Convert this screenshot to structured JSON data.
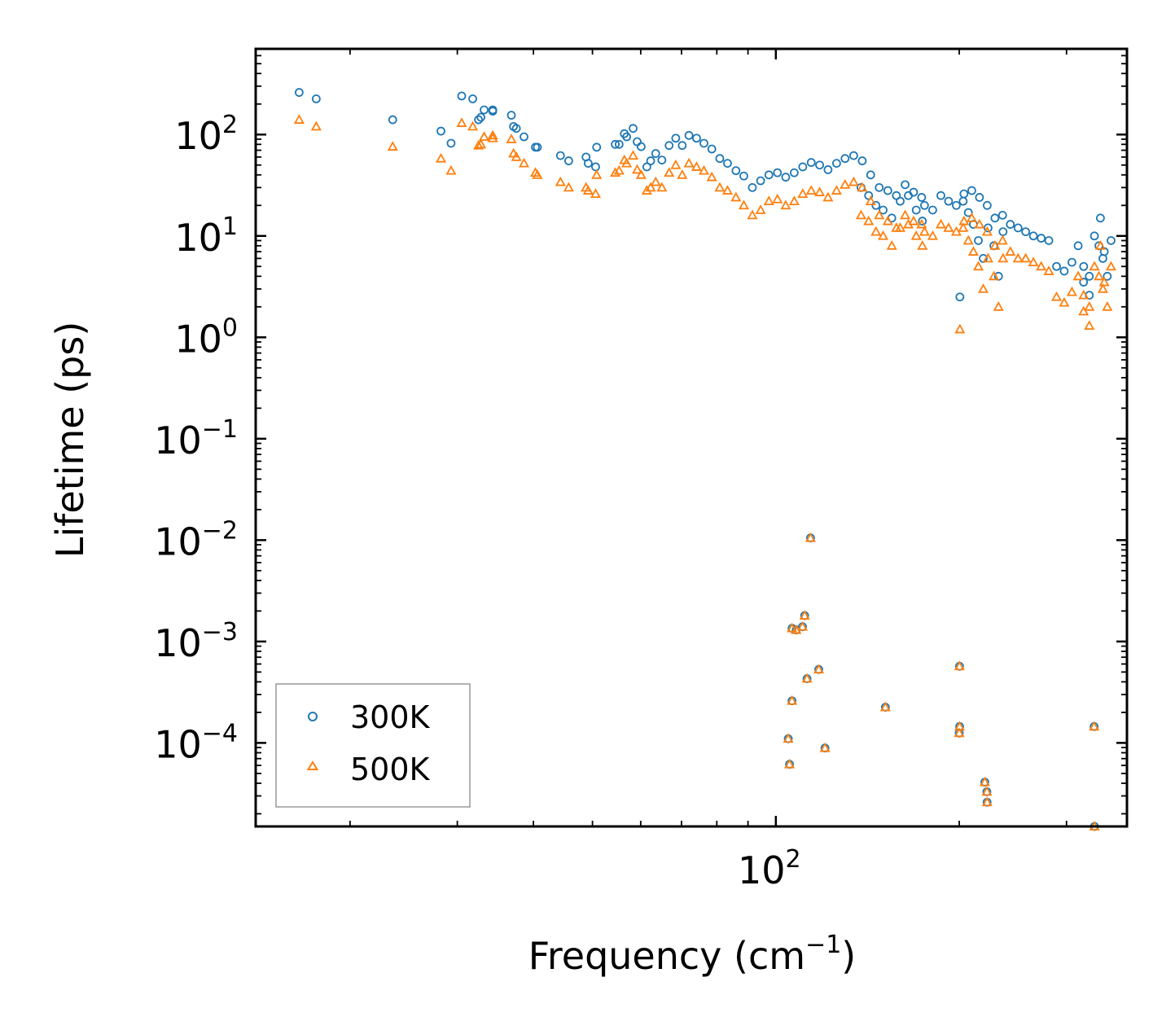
{
  "chart_data": {
    "type": "scatter",
    "title": "",
    "xlabel": "Frequency (cm",
    "xlabel_exp": "−1",
    "xlabel_suffix": ")",
    "ylabel": "Lifetime (ps)",
    "xscale": "log",
    "yscale": "log",
    "xlim": [
      14,
      377
    ],
    "ylim": [
      1.5e-05,
      700
    ],
    "x_ticks": [
      {
        "value": 100,
        "base": "10",
        "exp": "2"
      }
    ],
    "y_ticks": [
      {
        "value": 100,
        "base": "10",
        "exp": "2"
      },
      {
        "value": 10,
        "base": "10",
        "exp": "1"
      },
      {
        "value": 1,
        "base": "10",
        "exp": "0"
      },
      {
        "value": 0.1,
        "base": "10",
        "exp": "−1"
      },
      {
        "value": 0.01,
        "base": "10",
        "exp": "−2"
      },
      {
        "value": 0.001,
        "base": "10",
        "exp": "−3"
      },
      {
        "value": 0.0001,
        "base": "10",
        "exp": "−4"
      }
    ],
    "legend_position": "lower-left",
    "series": [
      {
        "name": "300K",
        "color": "#1f77b4",
        "marker": "circle",
        "x": [
          16.5,
          17.6,
          23.5,
          30.5,
          32.5,
          33.2,
          31.8,
          28.2,
          29.3,
          32.8,
          34.3,
          34.3,
          36.8,
          37.1,
          37.5,
          38.6,
          40.3,
          40.6,
          44.3,
          45.7,
          48.8,
          49.2,
          50.6,
          50.8,
          54.5,
          55.3,
          56.4,
          56.9,
          58.3,
          59.2,
          60.1,
          61.4,
          62.3,
          63.5,
          65.0,
          66.8,
          68.5,
          70.2,
          72.0,
          74.1,
          76.2,
          78.5,
          80.9,
          83.3,
          86.0,
          88.6,
          91.5,
          94.4,
          97.4,
          100.6,
          103.8,
          107.2,
          110.7,
          114.3,
          118.0,
          121.8,
          125.8,
          129.9,
          134.2,
          138.6,
          143.1,
          147.8,
          152.7,
          157.7,
          163.0,
          168.3,
          173.5,
          175.4,
          180.9,
          186.6,
          192.1,
          197.8,
          203.6,
          209.7,
          215.9,
          222.3,
          228.9,
          235.6,
          242.6,
          249.8,
          257.1,
          264.7,
          272.6,
          280.6,
          288.9,
          297.4,
          306.2,
          313.5,
          320.1,
          327.0,
          333.4,
          339.1,
          344.2,
          320.0,
          327.0,
          341.0,
          346.0,
          350.0,
          355.0,
          200.5,
          203.0,
          207.0,
          211.0,
          215.0,
          219.0,
          223.0,
          228.0,
          232.0,
          236.0,
          138.0,
          142.0,
          146.0,
          150.0,
          155.0,
          160.0,
          165.0,
          170.0,
          174.0,
          114.0,
          108.0,
          111.5,
          112.5,
          110.6,
          104.8,
          106.3,
          105.3,
          106.3,
          117.6,
          120.4,
          151.3,
          200.2,
          200.3,
          200.0,
          220.3,
          222.0,
          222.2,
          333.0,
          333.5
        ],
        "y": [
          260,
          225,
          140,
          240,
          140,
          175,
          225,
          108,
          82,
          148,
          170,
          175,
          155,
          120,
          115,
          95,
          75,
          75,
          62,
          55,
          60,
          52,
          48,
          75,
          80,
          80,
          102,
          95,
          115,
          85,
          76,
          48,
          55,
          65,
          56,
          78,
          92,
          78,
          98,
          92,
          82,
          72,
          58,
          52,
          44,
          39,
          30,
          35,
          40,
          42,
          38,
          42,
          48,
          53,
          50,
          45,
          52,
          58,
          62,
          55,
          40,
          30,
          28,
          25,
          32,
          27,
          24,
          20,
          18,
          25,
          22,
          20,
          26,
          28,
          24,
          20,
          15,
          16,
          13,
          12,
          11,
          10,
          9.5,
          9,
          5,
          4.5,
          5.5,
          8,
          5,
          4,
          10,
          8,
          6,
          3.5,
          2.6,
          15,
          7,
          4,
          9,
          2.5,
          22,
          17,
          13,
          9,
          6,
          12,
          8,
          4,
          11,
          30,
          25,
          20,
          18,
          15,
          22,
          25,
          18,
          14,
          0.0105,
          0.0013,
          0.0018,
          0.00043,
          0.0014,
          0.00011,
          0.00026,
          6.15e-05,
          0.00135,
          0.00053,
          8.9e-05,
          0.000225,
          0.00057,
          0.000145,
          0.000125,
          4.1e-05,
          3.3e-05,
          2.6e-05,
          0.000145,
          1.5e-05
        ]
      },
      {
        "name": "500K",
        "color": "#ff7f0e",
        "marker": "triangle",
        "x": [
          16.5,
          17.6,
          23.5,
          30.5,
          32.5,
          33.2,
          31.8,
          28.2,
          29.3,
          32.8,
          34.3,
          34.3,
          36.8,
          37.1,
          37.5,
          38.6,
          40.3,
          40.6,
          44.3,
          45.7,
          48.8,
          49.2,
          50.6,
          50.8,
          54.5,
          55.3,
          56.4,
          56.9,
          58.3,
          59.2,
          60.1,
          61.4,
          62.3,
          63.5,
          65.0,
          66.8,
          68.5,
          70.2,
          72.0,
          74.1,
          76.2,
          78.5,
          80.9,
          83.3,
          86.0,
          88.6,
          91.5,
          94.4,
          97.4,
          100.6,
          103.8,
          107.2,
          110.7,
          114.3,
          118.0,
          121.8,
          125.8,
          129.9,
          134.2,
          138.6,
          143.1,
          147.8,
          152.7,
          157.7,
          163.0,
          168.3,
          173.5,
          175.4,
          180.9,
          186.6,
          192.1,
          197.8,
          203.6,
          209.7,
          215.9,
          222.3,
          228.9,
          235.6,
          242.6,
          249.8,
          257.1,
          264.7,
          272.6,
          280.6,
          288.9,
          297.4,
          306.2,
          313.5,
          320.1,
          327.0,
          333.4,
          339.1,
          344.2,
          320.0,
          327.0,
          341.0,
          346.0,
          350.0,
          355.0,
          200.5,
          203.0,
          207.0,
          211.0,
          215.0,
          219.0,
          223.0,
          228.0,
          232.0,
          236.0,
          138.0,
          142.0,
          146.0,
          150.0,
          155.0,
          160.0,
          165.0,
          170.0,
          174.0,
          114.0,
          108.0,
          111.5,
          112.5,
          110.6,
          104.8,
          106.3,
          105.3,
          106.3,
          117.6,
          120.4,
          151.3,
          200.2,
          200.3,
          200.0,
          220.3,
          222.0,
          222.2,
          333.0,
          333.5
        ],
        "y": [
          140,
          120,
          76,
          130,
          78,
          95,
          120,
          58,
          44,
          80,
          92,
          98,
          90,
          65,
          60,
          52,
          42,
          40,
          34,
          30,
          30,
          28,
          26,
          40,
          42,
          44,
          56,
          52,
          62,
          45,
          40,
          28,
          30,
          34,
          30,
          42,
          50,
          40,
          52,
          48,
          44,
          38,
          30,
          28,
          24,
          20,
          16,
          18,
          22,
          23,
          20,
          22,
          26,
          28,
          27,
          24,
          28,
          32,
          34,
          30,
          22,
          16,
          14,
          12,
          16,
          14,
          13,
          11,
          10,
          13,
          12,
          11,
          14,
          15,
          13,
          11,
          8,
          9,
          7,
          6,
          6,
          5.5,
          5,
          4.5,
          2.5,
          2.2,
          2.8,
          4,
          2.6,
          2,
          5,
          4,
          3,
          1.8,
          1.3,
          8,
          3.5,
          2,
          5,
          1.2,
          12,
          9,
          7,
          5,
          3,
          6,
          4,
          2,
          6,
          16,
          14,
          11,
          10,
          8,
          12,
          13,
          10,
          8,
          0.0105,
          0.0013,
          0.0018,
          0.00043,
          0.0014,
          0.00011,
          0.00026,
          6.15e-05,
          0.00135,
          0.00053,
          8.9e-05,
          0.000225,
          0.00057,
          0.000145,
          0.000125,
          4.1e-05,
          3.3e-05,
          2.6e-05,
          0.000145,
          1.5e-05
        ]
      }
    ]
  }
}
